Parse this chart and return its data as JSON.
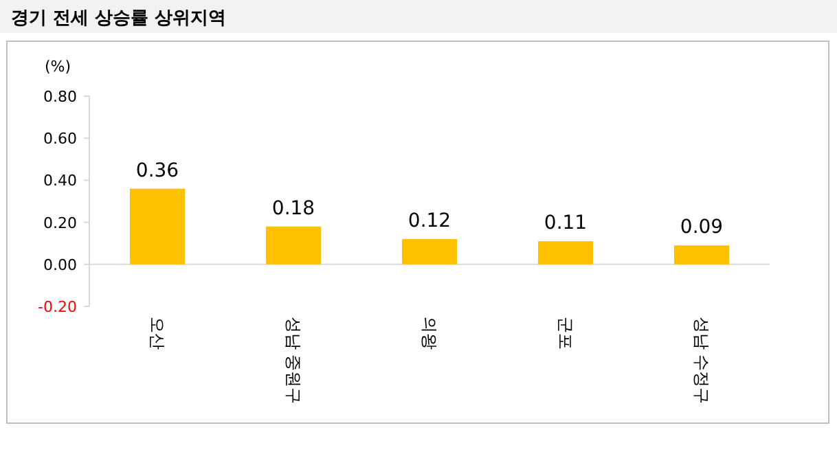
{
  "chart_data": {
    "type": "bar",
    "title": "경기 전세 상승률 상위지역",
    "ylabel": "(%)",
    "categories": [
      "오산",
      "성남 중원구",
      "의왕",
      "군포",
      "성남 수정구"
    ],
    "values": [
      0.36,
      0.18,
      0.12,
      0.11,
      0.09
    ],
    "color": "#ffc000",
    "data_labels": true,
    "ylim": [
      -0.2,
      0.8
    ],
    "yticks": [
      {
        "value": -0.2,
        "label": "-0.20"
      },
      {
        "value": 0,
        "label": "0.00"
      },
      {
        "value": 0.2,
        "label": "0.20"
      },
      {
        "value": 0.4,
        "label": "0.40"
      },
      {
        "value": 0.6,
        "label": "0.60"
      },
      {
        "value": 0.8,
        "label": "0.80"
      }
    ]
  }
}
